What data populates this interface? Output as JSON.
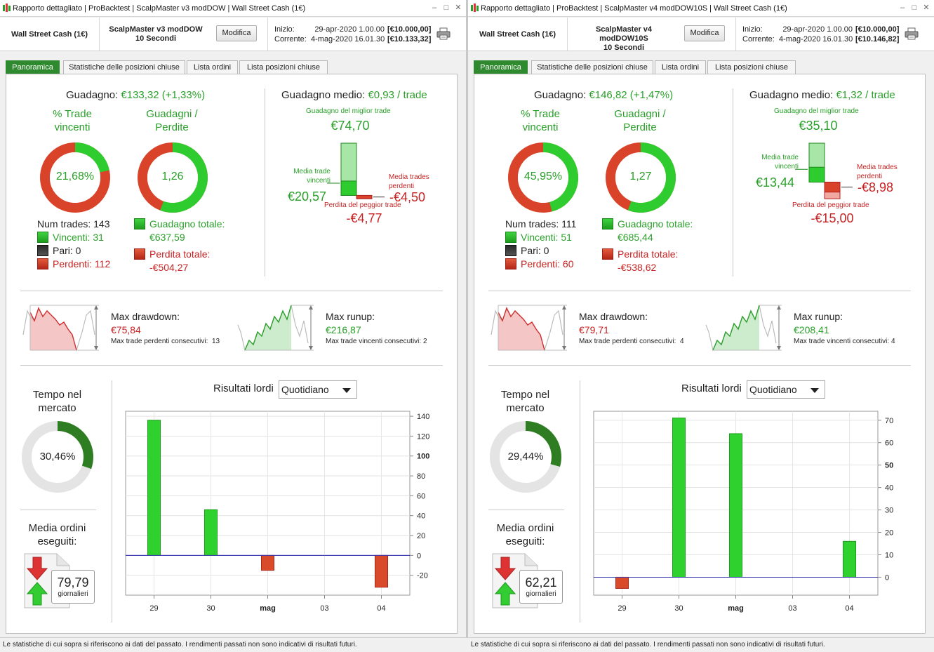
{
  "colors": {
    "green": "#2aa02a",
    "red": "#c62222",
    "tab_active": "#2f8a2f",
    "zero_line": "#3b3bb0",
    "bar_green": "#2fd12f",
    "bar_red": "#d94a2a"
  },
  "footer": "Le statistiche di cui sopra si riferiscono ai dati del passato. I rendimenti passati non sono indicativi di risultati futuri.",
  "windows": [
    {
      "title": "Rapporto dettagliato | ProBacktest | ScalpMaster v3 modDOW | Wall Street Cash (1€)",
      "instrument": "Wall Street Cash (1€)",
      "strategy_line1": "ScalpMaster v3 modDOW",
      "strategy_line2": "10 Secondi",
      "modify": "Modifica",
      "start_label": "Inizio:",
      "start_date": "29-apr-2020 1.00.00",
      "start_equity": "[€10.000,00]",
      "current_label": "Corrente:",
      "current_date": "4-mag-2020 16.01.30",
      "current_equity": "[€10.133,32]",
      "tabs": [
        "Panoramica",
        "Statistiche delle posizioni chiuse",
        "Lista ordini",
        "Lista posizioni chiuse"
      ],
      "gain_label": "Guadagno:",
      "gain_value": "€133,32 (+1,33%)",
      "win_pct_label": [
        "% Trade",
        "vincenti"
      ],
      "win_pct": "21,68%",
      "win_pct_value": 21.68,
      "gl_label": [
        "Guadagni /",
        "Perdite"
      ],
      "gl_ratio": "1,26",
      "gl_green_frac": 0.558,
      "num_trades": "Num trades: 143",
      "winners": "Vincenti: 31",
      "even": "Pari: 0",
      "losers": "Perdenti: 112",
      "total_gain_label": "Guadagno totale:",
      "total_gain": "€637,59",
      "total_loss_label": "Perdita totale:",
      "total_loss": "-€504,27",
      "avg_gain_label": "Guadagno medio:",
      "avg_gain": "€0,93 / trade",
      "best_label": "Guadagno del miglior trade",
      "best": "€74,70",
      "best_value": 74.7,
      "avg_win_label": [
        "Media trade",
        "vincenti"
      ],
      "avg_win": "€20,57",
      "avg_win_value": 20.57,
      "avg_loss_label": [
        "Media trades",
        "perdenti"
      ],
      "avg_loss": "-€4,50",
      "avg_loss_value": 4.5,
      "worst_label": "Perdita del peggior trade",
      "worst": "-€4,77",
      "worst_value": 4.77,
      "dd_label": "Max drawdown:",
      "dd_value": "€75,84",
      "dd_consec_label": "Max trade perdenti consecutivi:",
      "dd_consec": "13",
      "ru_label": "Max runup:",
      "ru_value": "€216,87",
      "ru_consec_label": "Max trade vincenti consecutivi:",
      "ru_consec": "2",
      "time_label": [
        "Tempo nel",
        "mercato"
      ],
      "time_pct": "30,46%",
      "time_value": 30.46,
      "orders_label": [
        "Media ordini",
        "eseguiti:"
      ],
      "orders_value": "79,79",
      "orders_unit": "giornalieri",
      "results_label": "Risultati lordi",
      "results_period": "Quotidiano",
      "chart_data": {
        "type": "bar",
        "categories": [
          "29",
          "30",
          "mag",
          "03",
          "04"
        ],
        "values": [
          136,
          46,
          -15,
          0,
          -32
        ],
        "ylim": [
          -40,
          145
        ],
        "ticks": [
          -20,
          0,
          20,
          40,
          60,
          80,
          100,
          120,
          140
        ],
        "bold_tick": 100,
        "bold_category": "mag"
      }
    },
    {
      "title": "Rapporto dettagliato | ProBacktest | ScalpMaster v4 modDOW10S | Wall Street Cash (1€)",
      "instrument": "Wall Street Cash (1€)",
      "strategy_line1": "ScalpMaster v4 modDOW10S",
      "strategy_line2": "10 Secondi",
      "modify": "Modifica",
      "start_label": "Inizio:",
      "start_date": "29-apr-2020 1.00.00",
      "start_equity": "[€10.000,00]",
      "current_label": "Corrente:",
      "current_date": "4-mag-2020 16.01.30",
      "current_equity": "[€10.146,82]",
      "tabs": [
        "Panoramica",
        "Statistiche delle posizioni chiuse",
        "Lista ordini",
        "Lista posizioni chiuse"
      ],
      "gain_label": "Guadagno:",
      "gain_value": "€146,82 (+1,47%)",
      "win_pct_label": [
        "% Trade",
        "vincenti"
      ],
      "win_pct": "45,95%",
      "win_pct_value": 45.95,
      "gl_label": [
        "Guadagni /",
        "Perdite"
      ],
      "gl_ratio": "1,27",
      "gl_green_frac": 0.56,
      "num_trades": "Num trades: 111",
      "winners": "Vincenti: 51",
      "even": "Pari: 0",
      "losers": "Perdenti: 60",
      "total_gain_label": "Guadagno totale:",
      "total_gain": "€685,44",
      "total_loss_label": "Perdita totale:",
      "total_loss": "-€538,62",
      "avg_gain_label": "Guadagno medio:",
      "avg_gain": "€1,32 / trade",
      "best_label": "Guadagno del miglior trade",
      "best": "€35,10",
      "best_value": 35.1,
      "avg_win_label": [
        "Media trade",
        "vincenti"
      ],
      "avg_win": "€13,44",
      "avg_win_value": 13.44,
      "avg_loss_label": [
        "Media trades",
        "perdenti"
      ],
      "avg_loss": "-€8,98",
      "avg_loss_value": 8.98,
      "worst_label": "Perdita del peggior trade",
      "worst": "-€15,00",
      "worst_value": 15.0,
      "dd_label": "Max drawdown:",
      "dd_value": "€79,71",
      "dd_consec_label": "Max trade perdenti consecutivi:",
      "dd_consec": "4",
      "ru_label": "Max runup:",
      "ru_value": "€208,41",
      "ru_consec_label": "Max trade vincenti consecutivi:",
      "ru_consec": "4",
      "time_label": [
        "Tempo nel",
        "mercato"
      ],
      "time_pct": "29,44%",
      "time_value": 29.44,
      "orders_label": [
        "Media ordini",
        "eseguiti:"
      ],
      "orders_value": "62,21",
      "orders_unit": "giornalieri",
      "results_label": "Risultati lordi",
      "results_period": "Quotidiano",
      "chart_data": {
        "type": "bar",
        "categories": [
          "29",
          "30",
          "mag",
          "03",
          "04"
        ],
        "values": [
          -5,
          71,
          64,
          0,
          16
        ],
        "ylim": [
          -8,
          74
        ],
        "ticks": [
          0,
          10,
          20,
          30,
          40,
          50,
          60,
          70
        ],
        "bold_tick": 50,
        "bold_category": "mag"
      }
    }
  ]
}
